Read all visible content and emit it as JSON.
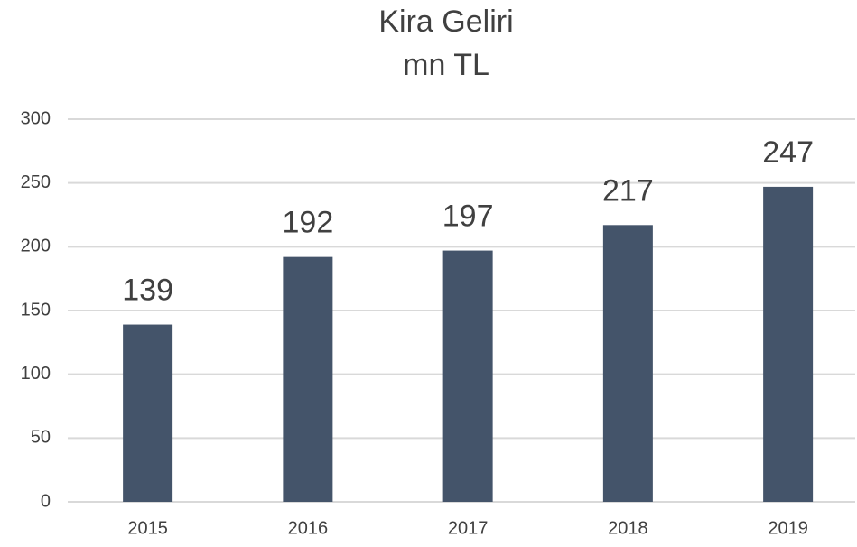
{
  "chart_data": {
    "type": "bar",
    "title": "Kira Geliri",
    "subtitle": "mn TL",
    "categories": [
      "2015",
      "2016",
      "2017",
      "2018",
      "2019"
    ],
    "values": [
      139,
      192,
      197,
      217,
      247
    ],
    "color": "#44546a",
    "ylim": [
      0,
      300
    ],
    "yticks": [
      0,
      50,
      100,
      150,
      200,
      250,
      300
    ],
    "grid": true
  }
}
